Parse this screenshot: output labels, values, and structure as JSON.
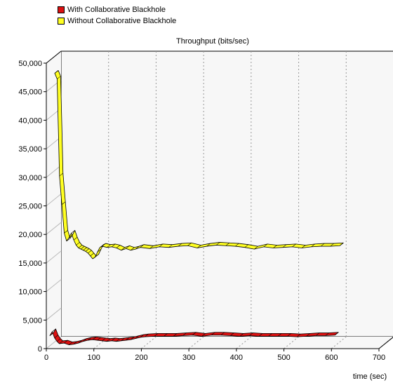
{
  "legend": [
    {
      "label": "With Collaborative Blackhole",
      "color": "#dd1111"
    },
    {
      "label": "Without Collaborative Blackhole",
      "color": "#ffff22"
    }
  ],
  "chart_data": {
    "type": "line",
    "title": "Throughput (bits/sec)",
    "xlabel": "time (sec)",
    "ylabel": "",
    "xlim": [
      0,
      700
    ],
    "ylim": [
      0,
      50000
    ],
    "x_ticks": [
      "0",
      "100",
      "200",
      "300",
      "400",
      "500",
      "600",
      "700"
    ],
    "y_ticks": [
      "0",
      "5,000",
      "10,000",
      "15,000",
      "20,000",
      "25,000",
      "30,000",
      "35,000",
      "40,000",
      "45,000",
      "50,000"
    ],
    "grid": true,
    "legend_position": "top-left",
    "style": "3d-ribbon",
    "series": [
      {
        "name": "With Collaborative Blackhole",
        "color": "#dd1111",
        "points": [
          [
            0,
            1900
          ],
          [
            5,
            2600
          ],
          [
            10,
            1500
          ],
          [
            15,
            900
          ],
          [
            20,
            500
          ],
          [
            30,
            600
          ],
          [
            40,
            300
          ],
          [
            50,
            400
          ],
          [
            60,
            600
          ],
          [
            70,
            900
          ],
          [
            80,
            1100
          ],
          [
            90,
            1200
          ],
          [
            100,
            1100
          ],
          [
            110,
            1000
          ],
          [
            120,
            900
          ],
          [
            130,
            1000
          ],
          [
            140,
            900
          ],
          [
            150,
            1000
          ],
          [
            160,
            1100
          ],
          [
            170,
            1200
          ],
          [
            180,
            1400
          ],
          [
            190,
            1600
          ],
          [
            200,
            1700
          ],
          [
            220,
            1800
          ],
          [
            240,
            1800
          ],
          [
            260,
            1800
          ],
          [
            280,
            1900
          ],
          [
            300,
            2000
          ],
          [
            320,
            1800
          ],
          [
            340,
            2000
          ],
          [
            360,
            2000
          ],
          [
            380,
            1900
          ],
          [
            400,
            1800
          ],
          [
            420,
            1900
          ],
          [
            440,
            1800
          ],
          [
            460,
            1800
          ],
          [
            480,
            1800
          ],
          [
            500,
            1800
          ],
          [
            520,
            1700
          ],
          [
            540,
            1800
          ],
          [
            560,
            1900
          ],
          [
            580,
            1900
          ],
          [
            600,
            2000
          ]
        ]
      },
      {
        "name": "Without Collaborative Blackhole",
        "color": "#ffff22",
        "points": [
          [
            0,
            47000
          ],
          [
            5,
            46000
          ],
          [
            10,
            29000
          ],
          [
            15,
            24000
          ],
          [
            20,
            19000
          ],
          [
            25,
            17600
          ],
          [
            30,
            18200
          ],
          [
            35,
            19000
          ],
          [
            40,
            17800
          ],
          [
            45,
            16900
          ],
          [
            50,
            16400
          ],
          [
            55,
            16200
          ],
          [
            60,
            16000
          ],
          [
            65,
            15800
          ],
          [
            70,
            15500
          ],
          [
            75,
            15000
          ],
          [
            80,
            14500
          ],
          [
            85,
            14800
          ],
          [
            90,
            15700
          ],
          [
            95,
            16500
          ],
          [
            100,
            16700
          ],
          [
            110,
            16500
          ],
          [
            120,
            16600
          ],
          [
            130,
            16400
          ],
          [
            140,
            16000
          ],
          [
            150,
            16300
          ],
          [
            160,
            16000
          ],
          [
            170,
            16200
          ],
          [
            180,
            16500
          ],
          [
            200,
            16300
          ],
          [
            220,
            16600
          ],
          [
            240,
            16500
          ],
          [
            260,
            16700
          ],
          [
            280,
            16800
          ],
          [
            300,
            16400
          ],
          [
            320,
            16700
          ],
          [
            340,
            16900
          ],
          [
            360,
            16800
          ],
          [
            380,
            16700
          ],
          [
            400,
            16500
          ],
          [
            420,
            16200
          ],
          [
            440,
            16600
          ],
          [
            460,
            16400
          ],
          [
            480,
            16500
          ],
          [
            500,
            16600
          ],
          [
            520,
            16400
          ],
          [
            540,
            16600
          ],
          [
            560,
            16700
          ],
          [
            580,
            16700
          ],
          [
            600,
            16800
          ]
        ]
      }
    ]
  }
}
